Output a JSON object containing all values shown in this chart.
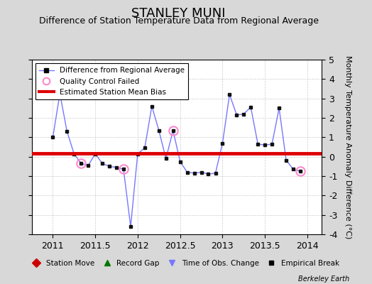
{
  "title": "STANLEY MUNI",
  "subtitle": "Difference of Station Temperature Data from Regional Average",
  "ylabel": "Monthly Temperature Anomaly Difference (°C)",
  "xlim": [
    2010.75,
    2014.17
  ],
  "ylim": [
    -4,
    5
  ],
  "yticks": [
    -4,
    -3,
    -2,
    -1,
    0,
    1,
    2,
    3,
    4,
    5
  ],
  "xticks": [
    2011,
    2011.5,
    2012,
    2012.5,
    2013,
    2013.5,
    2014
  ],
  "xticklabels": [
    "2011",
    "2011.5",
    "2012",
    "2012.5",
    "2013",
    "2013.5",
    "2014"
  ],
  "background_color": "#d8d8d8",
  "plot_bg_color": "#ffffff",
  "bias_value": 0.18,
  "bias_color": "#dd0000",
  "line_color": "#7777ff",
  "marker_color": "#111111",
  "qc_fail_color": "#ff88cc",
  "months": [
    2011.0,
    2011.083,
    2011.167,
    2011.25,
    2011.333,
    2011.417,
    2011.5,
    2011.583,
    2011.667,
    2011.75,
    2011.833,
    2011.917,
    2012.0,
    2012.083,
    2012.167,
    2012.25,
    2012.333,
    2012.417,
    2012.5,
    2012.583,
    2012.667,
    2012.75,
    2012.833,
    2012.917,
    2013.0,
    2013.083,
    2013.167,
    2013.25,
    2013.333,
    2013.417,
    2013.5,
    2013.583,
    2013.667,
    2013.75,
    2013.833,
    2013.917
  ],
  "values": [
    1.0,
    3.25,
    1.3,
    0.15,
    -0.35,
    -0.45,
    0.15,
    -0.35,
    -0.5,
    -0.55,
    -0.65,
    -3.6,
    0.15,
    0.45,
    2.6,
    1.35,
    -0.1,
    1.35,
    -0.25,
    -0.8,
    -0.85,
    -0.8,
    -0.9,
    -0.85,
    0.7,
    3.2,
    2.15,
    2.2,
    2.55,
    0.65,
    0.6,
    0.65,
    2.5,
    -0.18,
    -0.65,
    -0.75
  ],
  "qc_fail_indices": [
    1,
    4,
    10,
    17,
    35
  ],
  "title_fontsize": 13,
  "subtitle_fontsize": 9,
  "tick_fontsize": 9,
  "ylabel_fontsize": 8,
  "footer_text": "Berkeley Earth"
}
